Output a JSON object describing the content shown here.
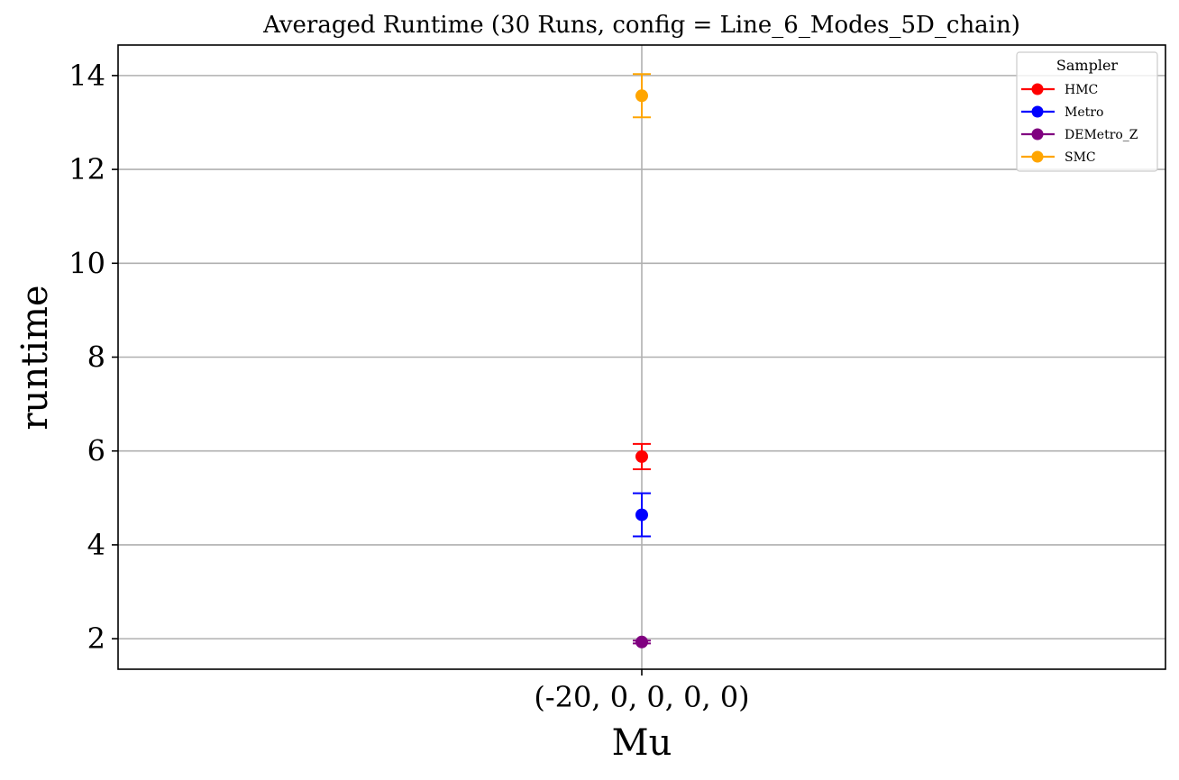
{
  "chart_data": {
    "type": "scatter",
    "title": "Averaged Runtime (30 Runs, config = Line_6_Modes_5D_chain)",
    "xlabel": "Mu",
    "ylabel": "runtime",
    "categories": [
      "(-20, 0, 0, 0, 0)"
    ],
    "yticks": [
      2,
      4,
      6,
      8,
      10,
      12,
      14
    ],
    "ylim": [
      1.35,
      14.65
    ],
    "grid": true,
    "legend": {
      "title": "Sampler",
      "placement": "top-right"
    },
    "series": [
      {
        "name": "HMC",
        "color": "#ff0000",
        "values": [
          5.88
        ],
        "err": [
          0.27
        ]
      },
      {
        "name": "Metro",
        "color": "#0000ff",
        "values": [
          4.64
        ],
        "err": [
          0.46
        ]
      },
      {
        "name": "DEMetro_Z",
        "color": "#800080",
        "values": [
          1.93
        ],
        "err": [
          0.03
        ]
      },
      {
        "name": "SMC",
        "color": "#ffa500",
        "values": [
          13.57
        ],
        "err": [
          0.46
        ]
      }
    ]
  }
}
